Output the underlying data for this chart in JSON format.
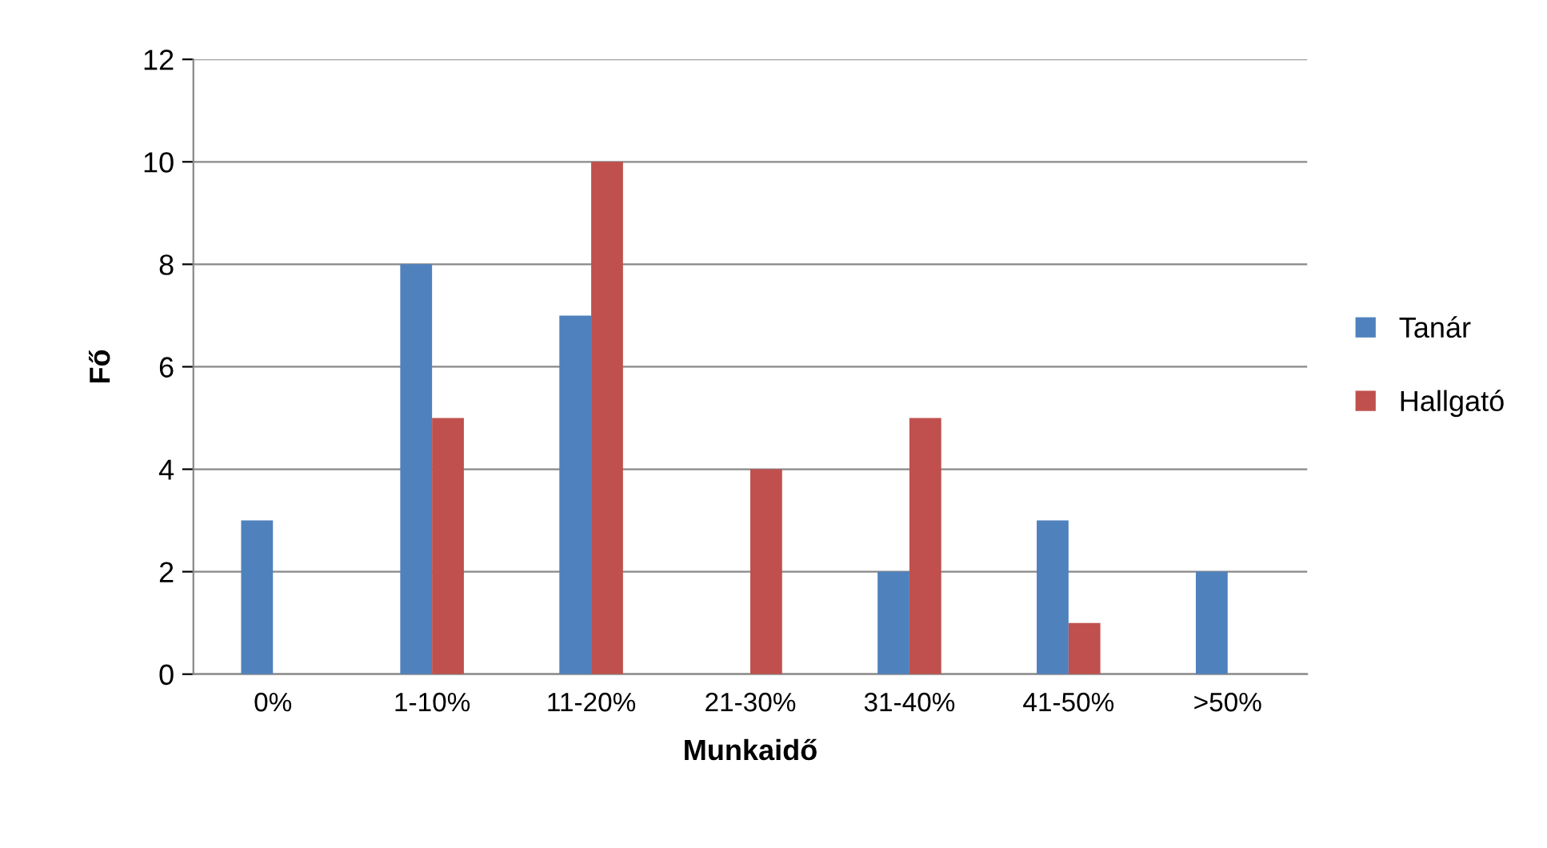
{
  "chart_data": {
    "type": "bar",
    "xlabel": "Munkaidő",
    "ylabel": "Fő",
    "categories": [
      "0%",
      "1-10%",
      "11-20%",
      "21-30%",
      "31-40%",
      "41-50%",
      ">50%"
    ],
    "series": [
      {
        "name": "Tanár",
        "color": "#4f81bd",
        "values": [
          3,
          8,
          7,
          0,
          2,
          3,
          2
        ]
      },
      {
        "name": "Hallgató",
        "color": "#c0504d",
        "values": [
          0,
          5,
          10,
          4,
          5,
          1,
          0
        ]
      }
    ],
    "ylim": [
      0,
      12
    ],
    "yticks": [
      0,
      2,
      4,
      6,
      8,
      10,
      12
    ],
    "grid": "y",
    "legend": "right"
  }
}
